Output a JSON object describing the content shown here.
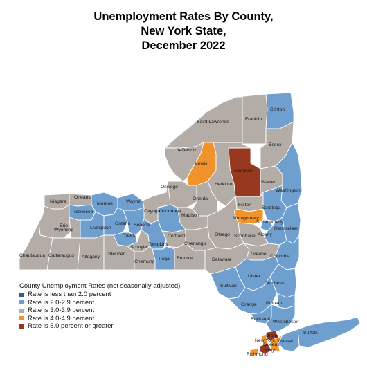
{
  "title": {
    "line1": "Unemployment Rates By County,",
    "line2": "New York State,",
    "line3": "December 2022"
  },
  "colors": {
    "lt2": "#2f5f8a",
    "r2to2_9": "#6f9fcf",
    "r3to3_9": "#b4aca6",
    "r4to4_9": "#f0932b",
    "r5plus": "#98391f",
    "border": "#ffffff"
  },
  "legend": {
    "title": "County Unemployment Rates (not seasonally adjusted)",
    "items": [
      {
        "label": "Rate is less than 2.0 percent",
        "color": "#2f5f8a"
      },
      {
        "label": "Rate is 2.0-2.9 percent",
        "color": "#6f9fcf"
      },
      {
        "label": "Rate is 3.0-3.9 percent",
        "color": "#b4aca6"
      },
      {
        "label": "Rate is 4.0-4.9 percent",
        "color": "#f0932b"
      },
      {
        "label": "Rate is 5.0 percent or greater",
        "color": "#98391f"
      }
    ]
  },
  "counties": {
    "clinton": {
      "name": "Clinton",
      "rate_class": "2.0-2.9"
    },
    "franklin": {
      "name": "Franklin",
      "rate_class": "3.0-3.9"
    },
    "st_lawrence": {
      "name": "Saint Lawrence",
      "rate_class": "3.0-3.9"
    },
    "essex": {
      "name": "Essex",
      "rate_class": "3.0-3.9"
    },
    "jefferson": {
      "name": "Jefferson",
      "rate_class": "3.0-3.9"
    },
    "lewis": {
      "name": "Lewis",
      "rate_class": "4.0-4.9"
    },
    "hamilton": {
      "name": "Hamilton",
      "rate_class": "5.0+"
    },
    "herkimer": {
      "name": "Herkimer",
      "rate_class": "3.0-3.9"
    },
    "warren": {
      "name": "Warren",
      "rate_class": "3.0-3.9"
    },
    "washington": {
      "name": "Washington",
      "rate_class": "2.0-2.9"
    },
    "oswego": {
      "name": "Oswego",
      "rate_class": "3.0-3.9"
    },
    "oneida": {
      "name": "Oneida",
      "rate_class": "3.0-3.9"
    },
    "fulton": {
      "name": "Fulton",
      "rate_class": "3.0-3.9"
    },
    "saratoga": {
      "name": "Saratoga",
      "rate_class": "2.0-2.9"
    },
    "montgomery": {
      "name": "Montgomery",
      "rate_class": "4.0-4.9"
    },
    "schenectady": {
      "name": "Schenectady",
      "rate_class": "2.0-2.9"
    },
    "rensselaer": {
      "name": "Rensselaer",
      "rate_class": "2.0-2.9"
    },
    "albany": {
      "name": "Albany",
      "rate_class": "2.0-2.9"
    },
    "schoharie": {
      "name": "Schoharie",
      "rate_class": "3.0-3.9"
    },
    "otsego": {
      "name": "Otsego",
      "rate_class": "3.0-3.9"
    },
    "madison": {
      "name": "Madison",
      "rate_class": "3.0-3.9"
    },
    "onondaga": {
      "name": "Onondaga",
      "rate_class": "2.0-2.9"
    },
    "cayuga": {
      "name": "Cayuga",
      "rate_class": "3.0-3.9"
    },
    "wayne": {
      "name": "Wayne",
      "rate_class": "2.0-2.9"
    },
    "monroe": {
      "name": "Monroe",
      "rate_class": "2.0-2.9"
    },
    "orleans": {
      "name": "Orleans",
      "rate_class": "3.0-3.9"
    },
    "niagara": {
      "name": "Niagara",
      "rate_class": "3.0-3.9"
    },
    "genesee": {
      "name": "Genesee",
      "rate_class": "2.0-2.9"
    },
    "erie": {
      "name": "Erie",
      "rate_class": "3.0-3.9"
    },
    "wyoming": {
      "name": "Wyoming",
      "rate_class": "3.0-3.9"
    },
    "livingston": {
      "name": "Livingston",
      "rate_class": "2.0-2.9"
    },
    "ontario": {
      "name": "Ontario",
      "rate_class": "2.0-2.9"
    },
    "seneca": {
      "name": "Seneca",
      "rate_class": "2.0-2.9"
    },
    "yates": {
      "name": "Yates",
      "rate_class": "2.0-2.9"
    },
    "schuyler": {
      "name": "Schuyler",
      "rate_class": "3.0-3.9"
    },
    "tompkins": {
      "name": "Tompkins",
      "rate_class": "2.0-2.9"
    },
    "cortland": {
      "name": "Cortland",
      "rate_class": "3.0-3.9"
    },
    "chenango": {
      "name": "Chenango",
      "rate_class": "3.0-3.9"
    },
    "chautauqua": {
      "name": "Chautauqua",
      "rate_class": "3.0-3.9"
    },
    "cattaraugus": {
      "name": "Cattaraugus",
      "rate_class": "3.0-3.9"
    },
    "allegany": {
      "name": "Allegany",
      "rate_class": "3.0-3.9"
    },
    "steuben": {
      "name": "Steuben",
      "rate_class": "3.0-3.9"
    },
    "chemung": {
      "name": "Chemung",
      "rate_class": "3.0-3.9"
    },
    "tioga": {
      "name": "Tioga",
      "rate_class": "2.0-2.9"
    },
    "broome": {
      "name": "Broome",
      "rate_class": "3.0-3.9"
    },
    "delaware": {
      "name": "Delaware",
      "rate_class": "3.0-3.9"
    },
    "greene": {
      "name": "Greene",
      "rate_class": "3.0-3.9"
    },
    "columbia": {
      "name": "Columbia",
      "rate_class": "2.0-2.9"
    },
    "ulster": {
      "name": "Ulster",
      "rate_class": "2.0-2.9"
    },
    "dutchess": {
      "name": "Dutchess",
      "rate_class": "2.0-2.9"
    },
    "sullivan": {
      "name": "Sullivan",
      "rate_class": "2.0-2.9"
    },
    "orange": {
      "name": "Orange",
      "rate_class": "2.0-2.9"
    },
    "putnam": {
      "name": "Putnam",
      "rate_class": "2.0-2.9"
    },
    "rockland": {
      "name": "Rockland",
      "rate_class": "2.0-2.9"
    },
    "westchester": {
      "name": "Westchester",
      "rate_class": "2.0-2.9"
    },
    "suffolk": {
      "name": "Suffolk",
      "rate_class": "2.0-2.9"
    },
    "nassau": {
      "name": "Nassau",
      "rate_class": "2.0-2.9"
    },
    "bronx": {
      "name": "Bronx",
      "rate_class": "5.0+"
    },
    "new_york": {
      "name": "New York",
      "rate_class": "4.0-4.9"
    },
    "queens": {
      "name": "Queens",
      "rate_class": "4.0-4.9"
    },
    "kings": {
      "name": "Kings",
      "rate_class": "5.0+"
    },
    "richmond": {
      "name": "Richmond",
      "rate_class": "4.0-4.9"
    }
  }
}
